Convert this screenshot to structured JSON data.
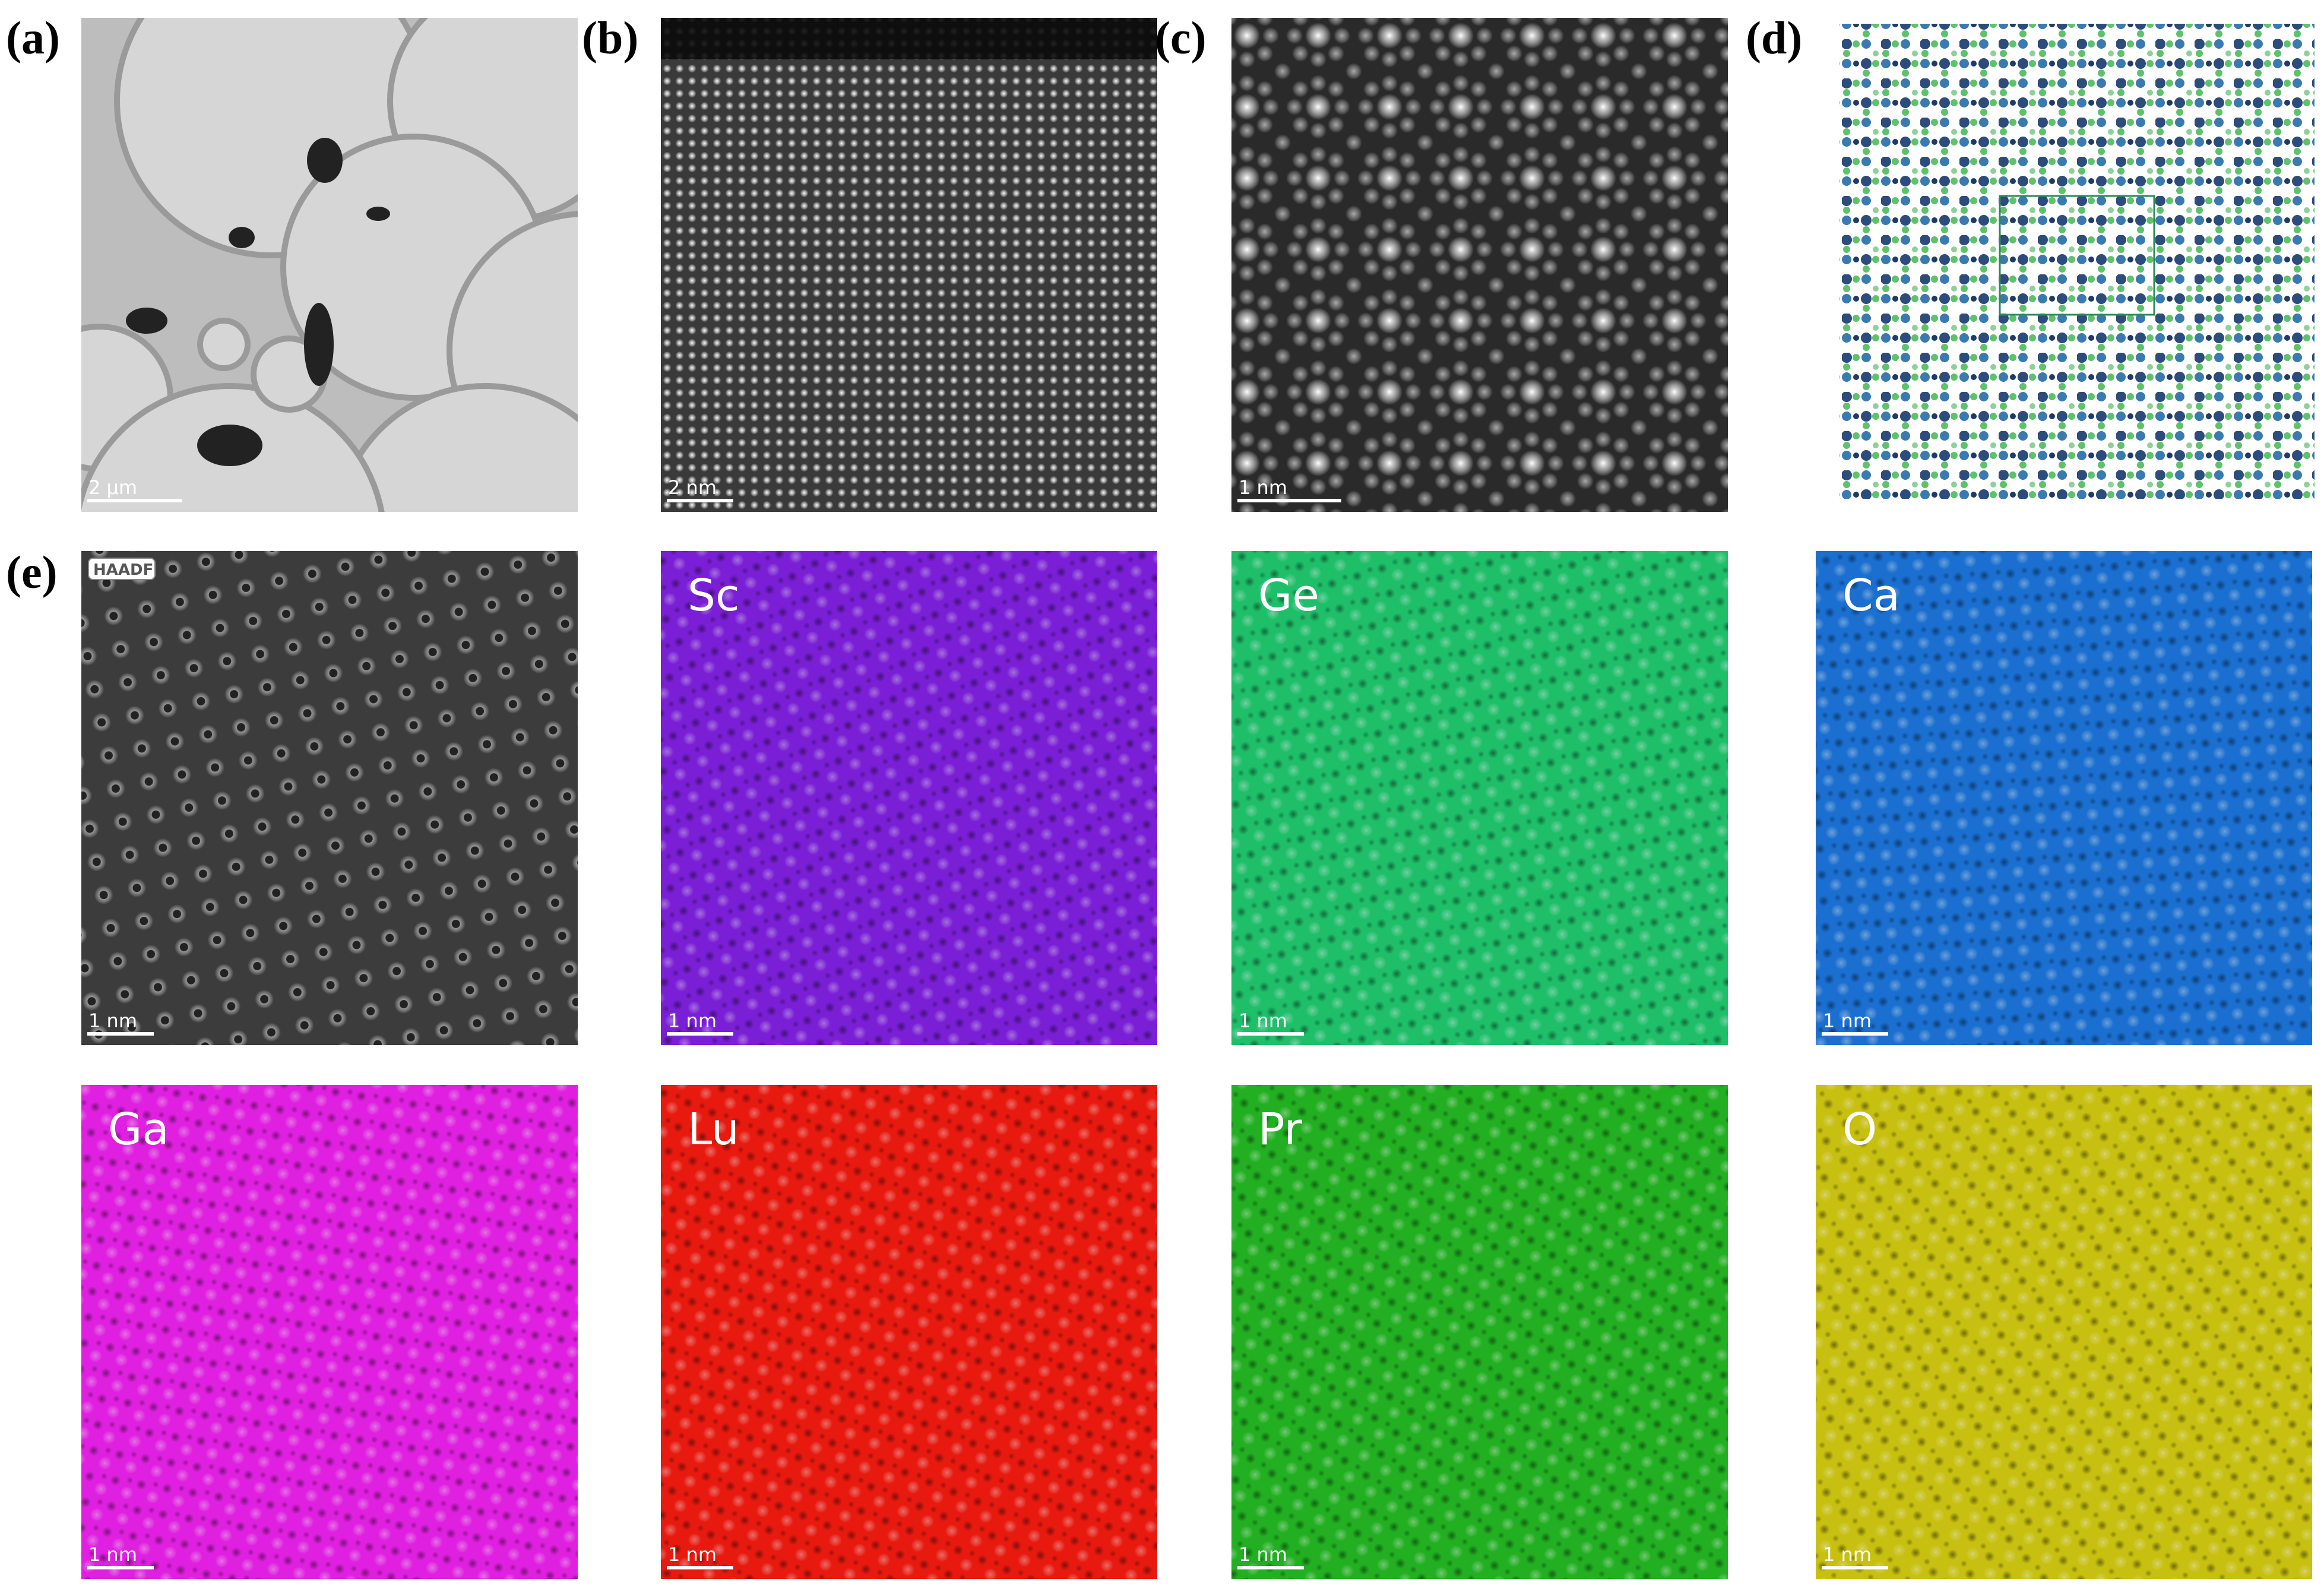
{
  "panels": [
    {
      "label": "(a)",
      "scale_bar": "2 μm"
    },
    {
      "label": "(b)",
      "scale_bar": "2 nm"
    },
    {
      "label": "(c)",
      "scale_bar": "1 nm"
    },
    {
      "label": "(d)"
    },
    {
      "label": "(e)",
      "tag": "HAADF",
      "scale_bar": "1 nm"
    }
  ],
  "maps": [
    {
      "element": "Sc",
      "color": "#7a1fd6",
      "scale_bar": "1 nm"
    },
    {
      "element": "Ge",
      "color": "#1fbf6a",
      "scale_bar": "1 nm"
    },
    {
      "element": "Ca",
      "color": "#1a6fd0",
      "scale_bar": "1 nm"
    },
    {
      "element": "Ga",
      "color": "#e020e0",
      "scale_bar": "1 nm"
    },
    {
      "element": "Lu",
      "color": "#e81a10",
      "scale_bar": "1 nm"
    },
    {
      "element": "Pr",
      "color": "#22b022",
      "scale_bar": "1 nm"
    },
    {
      "element": "O",
      "color": "#c8c010",
      "scale_bar": "1 nm"
    }
  ]
}
